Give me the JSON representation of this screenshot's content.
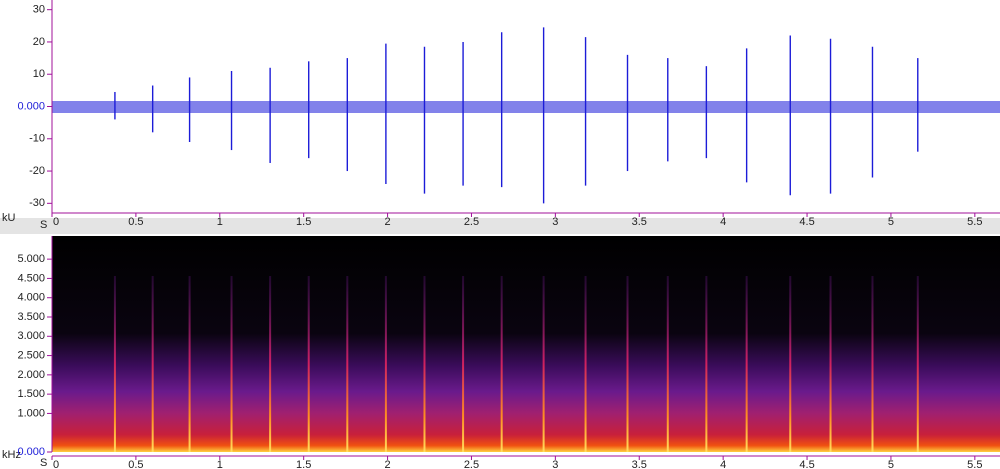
{
  "chart_data": [
    {
      "type": "waveform",
      "y_label": "kU",
      "x_label": "S",
      "x": [
        0.375,
        0.6,
        0.82,
        1.07,
        1.3,
        1.53,
        1.76,
        1.99,
        2.22,
        2.45,
        2.68,
        2.93,
        3.18,
        3.43,
        3.67,
        3.9,
        4.14,
        4.4,
        4.64,
        4.89,
        5.16
      ],
      "series": [
        {
          "color": "#1c1cd8",
          "values": [
            4.5,
            6.5,
            9,
            11,
            12,
            14,
            15,
            19.5,
            18.5,
            20,
            23,
            24.5,
            21.5,
            16,
            15,
            12.5,
            18,
            22,
            21,
            18.5,
            15
          ]
        },
        {
          "color": "#1c1cd8",
          "values": [
            -4,
            -8,
            -11,
            -13.5,
            -17.5,
            -16,
            -20,
            -24,
            -27,
            -24.5,
            -25,
            -30,
            -24.5,
            -20,
            -17,
            -16,
            -23.5,
            -27.5,
            -27,
            -22,
            -14
          ]
        }
      ],
      "xlim": [
        0,
        5.65
      ],
      "xticks": [
        0,
        0.5,
        1,
        1.5,
        2,
        2.5,
        3,
        3.5,
        4,
        4.5,
        5,
        5.5
      ],
      "ylim": [
        -33,
        33
      ],
      "yticks": [
        -30,
        -20,
        -10,
        {
          "value": 0,
          "label": "0.000"
        },
        10,
        20,
        30
      ]
    },
    {
      "type": "spectrogram",
      "y_label": "kHz",
      "x_label": "S",
      "xlim": [
        0,
        5.65
      ],
      "xticks": [
        0,
        0.5,
        1,
        1.5,
        2,
        2.5,
        3,
        3.5,
        4,
        4.5,
        5,
        5.5
      ],
      "ylim": [
        0,
        5.6
      ],
      "yticks": [
        {
          "value": 0,
          "label": "0.000"
        },
        {
          "value": 1,
          "label": "1.000"
        },
        {
          "value": 1.5,
          "label": "1.500"
        },
        {
          "value": 2,
          "label": "2.000"
        },
        {
          "value": 2.5,
          "label": "2.500"
        },
        {
          "value": 3,
          "label": "3.000"
        },
        {
          "value": 3.5,
          "label": "3.500"
        },
        {
          "value": 4,
          "label": "4.000"
        },
        {
          "value": 4.5,
          "label": "4.500"
        },
        {
          "value": 5,
          "label": "5.000"
        }
      ]
    }
  ]
}
